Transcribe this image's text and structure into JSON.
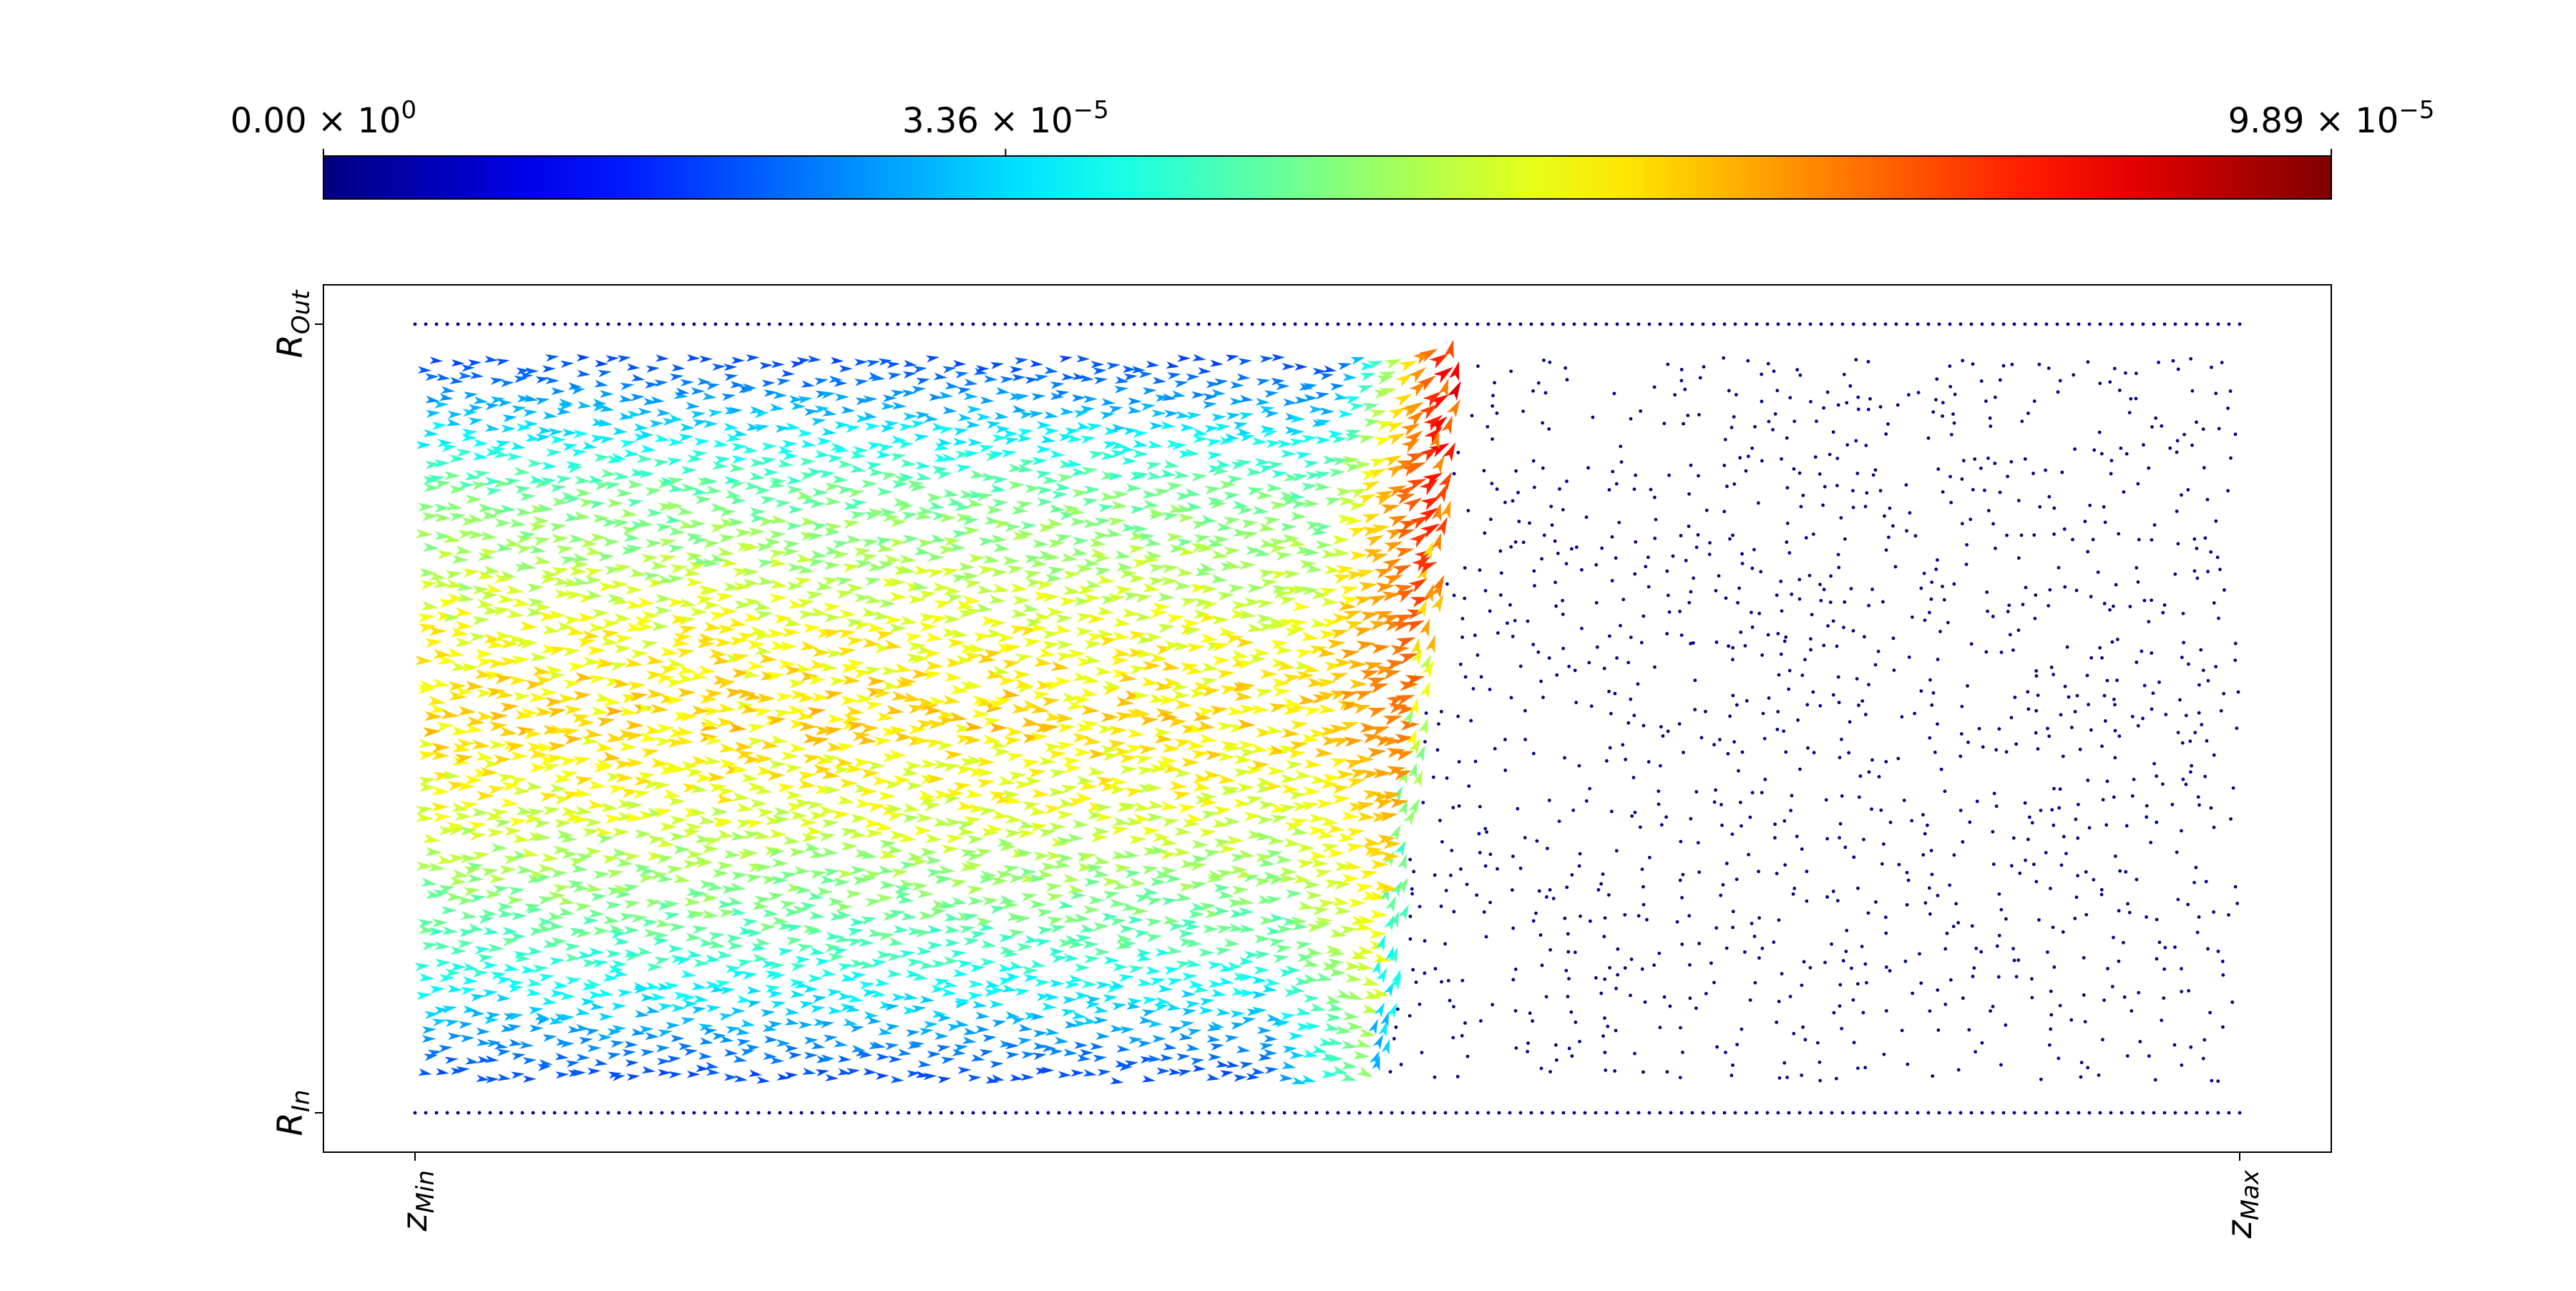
{
  "chart_data": {
    "type": "quiver",
    "title": "",
    "colorbar": {
      "colormap": "jet",
      "min": 0.0,
      "max": 9.89e-05,
      "orientation": "horizontal",
      "placement": "top",
      "ticks": [
        {
          "value": 0.0,
          "mantissa": "0.00",
          "base": "× 10",
          "exponent": "0"
        },
        {
          "value": 3.36e-05,
          "mantissa": "3.36",
          "base": "× 10",
          "exponent": "−5"
        },
        {
          "value": 9.89e-05,
          "mantissa": "9.89",
          "base": "× 10",
          "exponent": "−5"
        }
      ]
    },
    "x_axis": {
      "range": [
        0,
        1
      ],
      "ticks": [
        {
          "value": 0,
          "base": "z",
          "sub": "Min"
        },
        {
          "value": 1,
          "base": "z",
          "sub": "Max"
        }
      ],
      "label_rotation": "vertical"
    },
    "y_axis": {
      "range": [
        0,
        1
      ],
      "ticks": [
        {
          "value": 0,
          "base": "R",
          "sub": "In"
        },
        {
          "value": 1,
          "base": "R",
          "sub": "Out"
        }
      ],
      "label_rotation": "vertical"
    },
    "field": {
      "flow_direction": "+z",
      "front_z": 0.52,
      "front_r_bottom": 0.05,
      "front_r_top": 1.0,
      "magnitude_at_inlet_profile": [
        {
          "r": 0.05,
          "m": 2e-05
        },
        {
          "r": 0.2,
          "m": 4.3e-05
        },
        {
          "r": 0.4,
          "m": 6e-05
        },
        {
          "r": 0.5,
          "m": 6.5e-05
        },
        {
          "r": 0.6,
          "m": 6.1e-05
        },
        {
          "r": 0.8,
          "m": 4.6e-05
        },
        {
          "r": 0.95,
          "m": 2e-05
        }
      ],
      "front_magnitude_max": 9.89e-05,
      "boundary_rows": [
        "R_In",
        "R_Out"
      ]
    },
    "grid": false
  }
}
